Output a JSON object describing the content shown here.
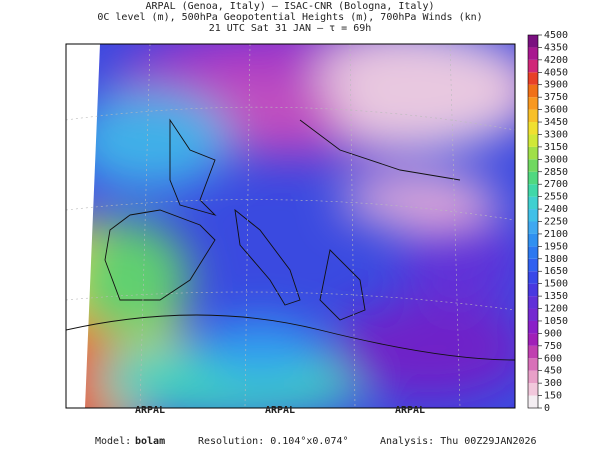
{
  "header": {
    "line1": "ARPAL (Genoa, Italy)  —  ISAC-CNR (Bologna, Italy)",
    "line2": "0C level (m), 500hPa Geopotential Heights (m), 700hPa Winds (kn)",
    "line3": "21 UTC Sat 31 JAN  —  τ = 69h"
  },
  "colorbar": {
    "levels": [
      0,
      150,
      300,
      450,
      600,
      750,
      900,
      1050,
      1200,
      1350,
      1500,
      1650,
      1800,
      1950,
      2100,
      2250,
      2400,
      2550,
      2700,
      2850,
      3000,
      3150,
      3300,
      3450,
      3600,
      3750,
      3900,
      4050,
      4200,
      4350,
      4500
    ],
    "colors": [
      "#f4eef2",
      "#f2c8dc",
      "#e8a0c8",
      "#d870b8",
      "#c040b0",
      "#a020b8",
      "#8a20c8",
      "#7428d0",
      "#6030d8",
      "#4838e0",
      "#3848e8",
      "#3060f0",
      "#2c78f0",
      "#3090f0",
      "#40a8f0",
      "#40c0e8",
      "#40d0d0",
      "#40d8a8",
      "#50d880",
      "#70d860",
      "#a0e048",
      "#d0e838",
      "#f0e030",
      "#f8c028",
      "#f89820",
      "#f07018",
      "#e84028",
      "#d02878",
      "#a81890",
      "#7a1080"
    ]
  },
  "watermark": "ARPAL",
  "footer": {
    "model_label": "Model:",
    "model": "bolam",
    "resolution": "Resolution: 0.104°x0.074°",
    "analysis": "Analysis: Thu 00Z29JAN2026"
  }
}
